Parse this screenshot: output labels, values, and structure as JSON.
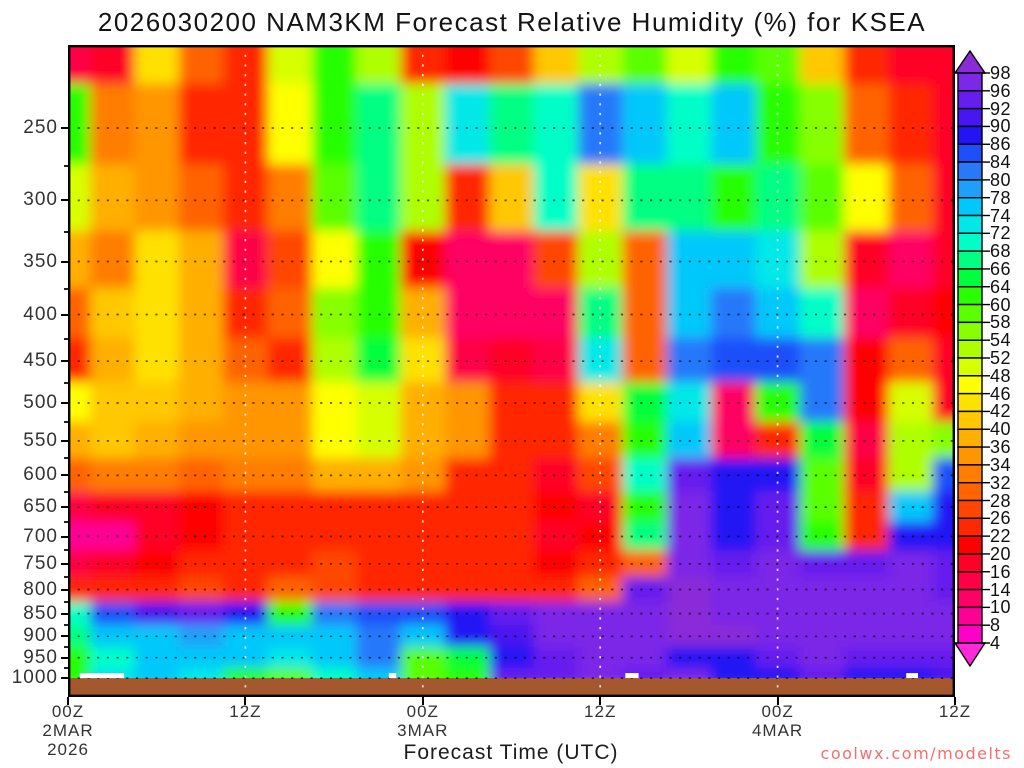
{
  "title": "2026030200 NAM3KM Forecast Relative Humidity (%) for KSEA",
  "watermark": "coolwx.com/modelts",
  "chart_data": {
    "type": "heatmap",
    "title": "2026030200 NAM3KM Forecast Relative Humidity (%) for KSEA",
    "xlabel": "Forecast Time (UTC)",
    "ylabel": "",
    "units": "%",
    "x_range_hours": [
      0,
      60
    ],
    "x_ticks": [
      {
        "hour": 0,
        "lines": [
          "00Z",
          "2MAR",
          "2026"
        ]
      },
      {
        "hour": 12,
        "lines": [
          "12Z"
        ]
      },
      {
        "hour": 24,
        "lines": [
          "00Z",
          "3MAR"
        ]
      },
      {
        "hour": 36,
        "lines": [
          "12Z"
        ]
      },
      {
        "hour": 48,
        "lines": [
          "00Z",
          "4MAR"
        ]
      },
      {
        "hour": 60,
        "lines": [
          "12Z"
        ]
      }
    ],
    "x_gridline_hours": [
      12,
      24,
      36,
      48
    ],
    "y_scale": "log",
    "y_top_hpa": 202.8,
    "y_bottom_hpa": 1048.9,
    "y_ticks": [
      250,
      300,
      350,
      400,
      450,
      500,
      550,
      600,
      650,
      700,
      750,
      800,
      850,
      900,
      950,
      1000
    ],
    "y_minor_ticks": [
      275,
      325,
      375,
      425,
      475,
      525,
      575,
      625,
      675,
      725,
      775,
      825,
      875,
      925,
      975
    ],
    "levels": [
      4,
      8,
      10,
      14,
      16,
      20,
      22,
      26,
      28,
      32,
      34,
      36,
      40,
      42,
      46,
      48,
      52,
      54,
      58,
      60,
      64,
      66,
      68,
      72,
      74,
      78,
      80,
      84,
      86,
      90,
      92,
      96,
      98
    ],
    "palette": [
      "#FF28DC",
      "#FF00C8",
      "#FF0096",
      "#FF0064",
      "#FF0046",
      "#FF0028",
      "#FF0000",
      "#FF2800",
      "#FF4600",
      "#FF6400",
      "#FF7D00",
      "#FF9600",
      "#FFAF00",
      "#FFC800",
      "#FFE100",
      "#FFFF00",
      "#D7FF00",
      "#AFFF00",
      "#87FF00",
      "#5AFF00",
      "#28FF00",
      "#00FF3C",
      "#00FF82",
      "#00FFC8",
      "#00E8E8",
      "#00C8FA",
      "#1EA0FA",
      "#2878FA",
      "#1E50FA",
      "#2314F5",
      "#4816F0",
      "#661EEE",
      "#7B28E8",
      "#8A2BD8"
    ],
    "colorbar_labels_top_to_bottom": [
      "98",
      "96",
      "92",
      "90",
      "86",
      "84",
      "80",
      "78",
      "74",
      "72",
      "68",
      "66",
      "64",
      "60",
      "58",
      "54",
      "52",
      "48",
      "46",
      "42",
      "40",
      "36",
      "34",
      "32",
      "28",
      "26",
      "22",
      "20",
      "16",
      "14",
      "10",
      "8",
      "4"
    ],
    "terrain_color": "#A5582D",
    "surface_marker_hours": [
      [
        0.8,
        3.8
      ],
      [
        21.7,
        22.2
      ],
      [
        37.7,
        38.6
      ],
      [
        56.7,
        57.5
      ]
    ],
    "grid": {
      "hours": [
        0,
        3,
        6,
        9,
        12,
        15,
        18,
        21,
        24,
        27,
        30,
        33,
        36,
        39,
        42,
        45,
        48,
        51,
        54,
        57,
        60
      ],
      "pressures_hpa": [
        200,
        250,
        300,
        350,
        400,
        450,
        500,
        550,
        600,
        650,
        700,
        750,
        800,
        850,
        900,
        950,
        1000
      ],
      "rh_percent": [
        [
          14,
          16,
          45,
          28,
          22,
          50,
          60,
          52,
          22,
          20,
          26,
          40,
          52,
          58,
          48,
          62,
          58,
          40,
          22,
          18,
          16
        ],
        [
          62,
          32,
          34,
          24,
          24,
          46,
          62,
          66,
          52,
          72,
          66,
          70,
          80,
          74,
          68,
          76,
          60,
          56,
          30,
          22,
          16
        ],
        [
          50,
          36,
          34,
          30,
          22,
          32,
          58,
          66,
          52,
          24,
          40,
          70,
          42,
          66,
          66,
          62,
          66,
          58,
          46,
          28,
          16
        ],
        [
          36,
          32,
          44,
          36,
          14,
          26,
          46,
          62,
          20,
          12,
          12,
          26,
          52,
          28,
          74,
          74,
          72,
          52,
          16,
          12,
          16
        ],
        [
          30,
          40,
          42,
          36,
          24,
          28,
          54,
          62,
          38,
          10,
          12,
          12,
          66,
          28,
          76,
          80,
          74,
          70,
          10,
          16,
          20
        ],
        [
          22,
          38,
          44,
          38,
          30,
          24,
          52,
          64,
          44,
          14,
          16,
          14,
          72,
          28,
          80,
          84,
          84,
          80,
          20,
          30,
          16
        ],
        [
          46,
          40,
          40,
          36,
          34,
          34,
          46,
          48,
          38,
          34,
          24,
          22,
          44,
          64,
          72,
          12,
          60,
          82,
          20,
          48,
          18
        ],
        [
          36,
          40,
          36,
          34,
          34,
          34,
          46,
          50,
          36,
          34,
          24,
          22,
          32,
          60,
          74,
          10,
          22,
          64,
          14,
          52,
          56
        ],
        [
          30,
          32,
          32,
          30,
          32,
          32,
          36,
          36,
          34,
          24,
          22,
          18,
          26,
          68,
          94,
          86,
          88,
          58,
          18,
          52,
          84
        ],
        [
          14,
          16,
          18,
          20,
          22,
          24,
          24,
          22,
          22,
          22,
          22,
          20,
          16,
          62,
          96,
          86,
          94,
          58,
          22,
          76,
          86
        ],
        [
          8,
          8,
          16,
          20,
          22,
          24,
          24,
          24,
          22,
          24,
          22,
          16,
          20,
          66,
          96,
          86,
          94,
          60,
          22,
          88,
          86
        ],
        [
          14,
          16,
          20,
          22,
          24,
          24,
          26,
          24,
          22,
          24,
          24,
          20,
          22,
          28,
          96,
          94,
          96,
          92,
          94,
          96,
          92
        ],
        [
          24,
          24,
          24,
          26,
          24,
          28,
          26,
          24,
          22,
          24,
          22,
          22,
          30,
          92,
          98,
          96,
          96,
          96,
          96,
          96,
          94
        ],
        [
          70,
          84,
          90,
          92,
          86,
          60,
          82,
          84,
          84,
          86,
          92,
          96,
          96,
          96,
          98,
          96,
          96,
          96,
          96,
          96,
          96
        ],
        [
          66,
          74,
          76,
          78,
          76,
          74,
          76,
          82,
          76,
          86,
          90,
          96,
          96,
          96,
          98,
          98,
          96,
          96,
          96,
          96,
          96
        ],
        [
          62,
          68,
          74,
          76,
          74,
          72,
          74,
          80,
          58,
          64,
          86,
          92,
          96,
          96,
          88,
          86,
          94,
          96,
          92,
          94,
          92
        ],
        [
          62,
          72,
          74,
          72,
          62,
          58,
          70,
          76,
          58,
          60,
          92,
          94,
          96,
          94,
          96,
          88,
          86,
          94,
          88,
          86,
          90
        ]
      ]
    }
  }
}
